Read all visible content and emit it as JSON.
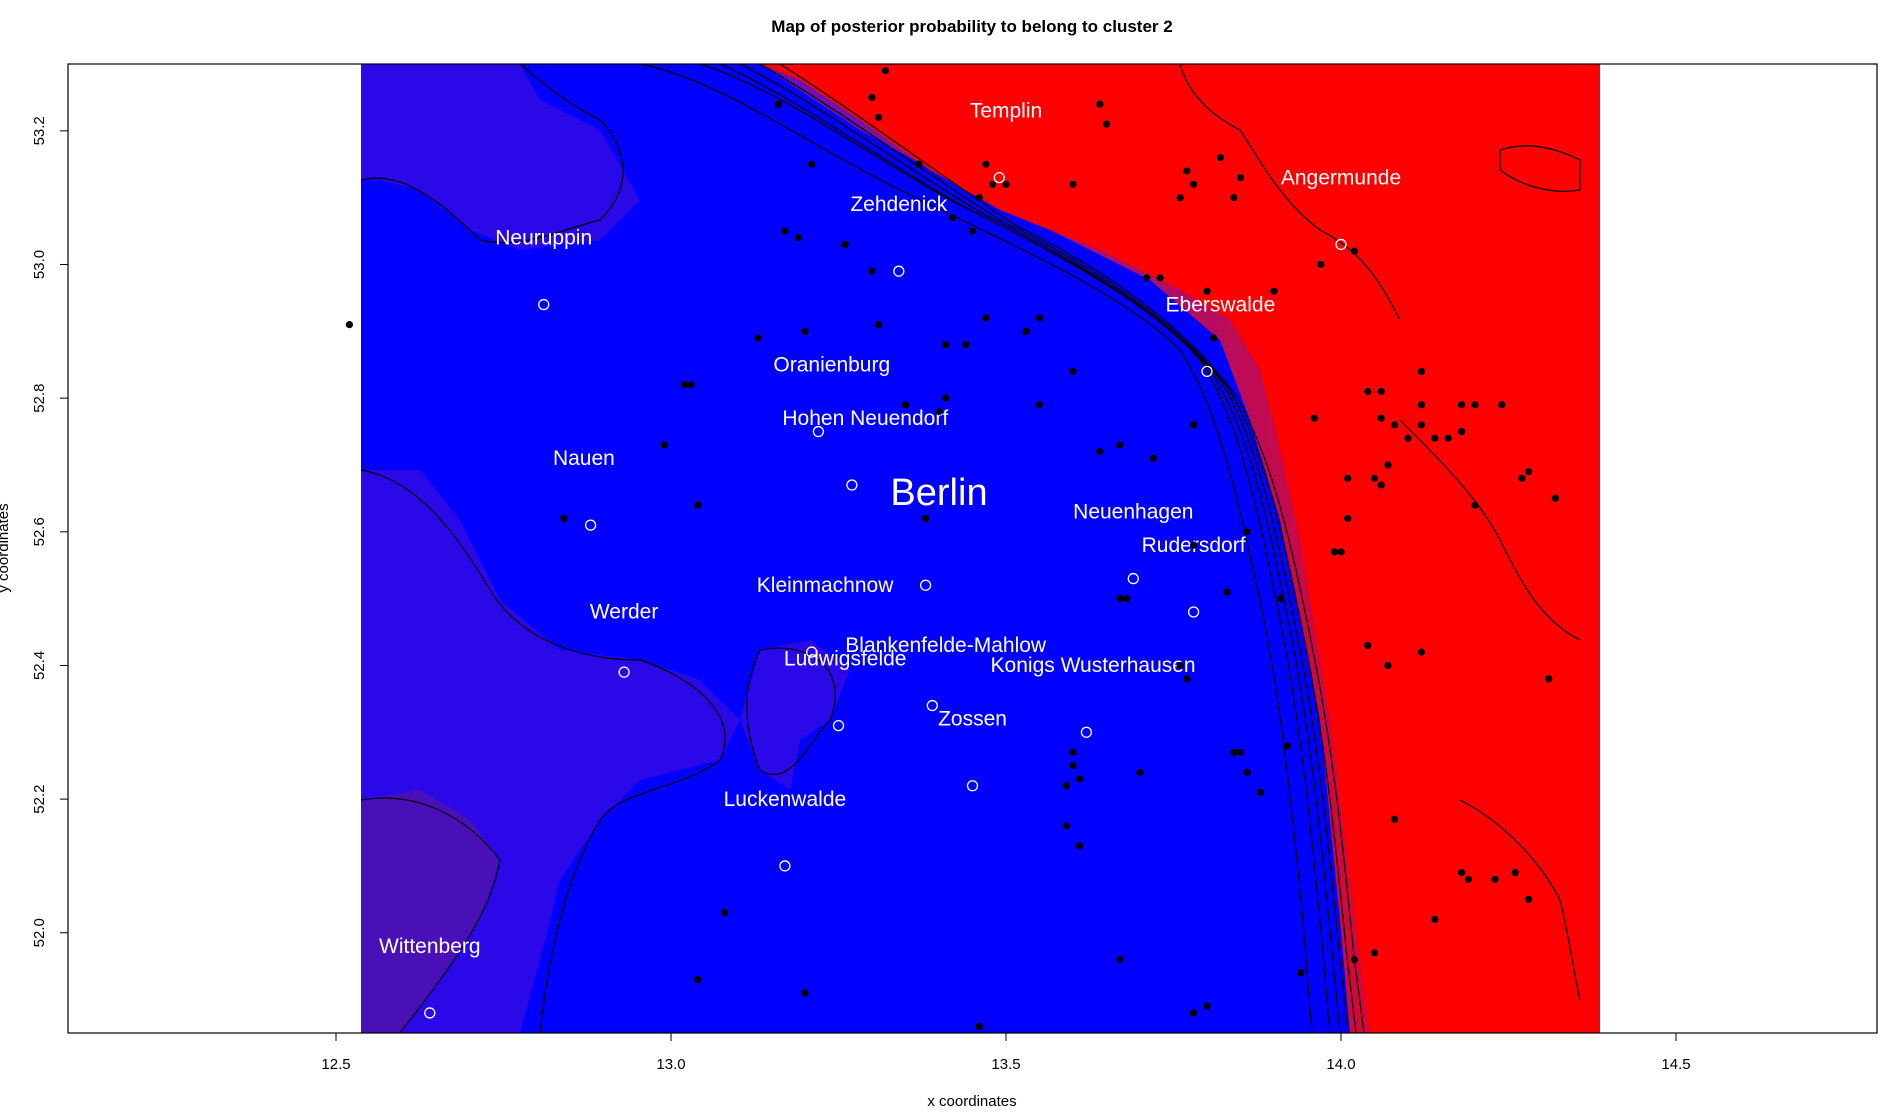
{
  "map": {
    "title": "Map of posterior probability to belong to cluster  2",
    "xlabel": "x coordinates",
    "ylabel": "y coordinates",
    "xlim": [
      12.1,
      14.8
    ],
    "ylim": [
      51.85,
      53.3
    ],
    "raster_x_range": [
      12.52,
      14.33
    ],
    "x_ticks": [
      "12.5",
      "13.0",
      "13.5",
      "14.0",
      "14.5"
    ],
    "y_ticks": [
      "52.0",
      "52.2",
      "52.4",
      "52.6",
      "52.8",
      "53.0",
      "53.2"
    ],
    "colors": {
      "low": "#0000ff",
      "high": "#ff0000",
      "contour": "#000000",
      "label": "#ffffff",
      "marker": "#000000"
    },
    "cities": [
      {
        "name": "Templin",
        "lon": 13.5,
        "lat": 53.22
      },
      {
        "name": "Angermunde",
        "lon": 14.0,
        "lat": 53.12
      },
      {
        "name": "Zehdenick",
        "lon": 13.34,
        "lat": 53.08
      },
      {
        "name": "Neuruppin",
        "lon": 12.81,
        "lat": 53.03
      },
      {
        "name": "Eberswalde",
        "lon": 13.82,
        "lat": 52.93
      },
      {
        "name": "Oranienburg",
        "lon": 13.24,
        "lat": 52.84
      },
      {
        "name": "Hohen Neuendorf",
        "lon": 13.29,
        "lat": 52.76
      },
      {
        "name": "Nauen",
        "lon": 12.87,
        "lat": 52.7
      },
      {
        "name": "Neuenhagen",
        "lon": 13.69,
        "lat": 52.62
      },
      {
        "name": "Rudersdorf",
        "lon": 13.78,
        "lat": 52.57
      },
      {
        "name": "Kleinmachnow",
        "lon": 13.23,
        "lat": 52.51
      },
      {
        "name": "Werder",
        "lon": 12.93,
        "lat": 52.47
      },
      {
        "name": "Blankenfelde-Mahlow",
        "lon": 13.41,
        "lat": 52.42
      },
      {
        "name": "Ludwigsfelde",
        "lon": 13.26,
        "lat": 52.4
      },
      {
        "name": "Konigs Wusterhausen",
        "lon": 13.63,
        "lat": 52.39
      },
      {
        "name": "Zossen",
        "lon": 13.45,
        "lat": 52.31
      },
      {
        "name": "Luckenwalde",
        "lon": 13.17,
        "lat": 52.19
      },
      {
        "name": "Wittenberg",
        "lon": 12.64,
        "lat": 51.97
      }
    ],
    "capital": {
      "name": "Berlin",
      "lon": 13.4,
      "lat": 52.64
    },
    "open_markers": [
      [
        13.49,
        53.13
      ],
      [
        13.34,
        52.99
      ],
      [
        12.81,
        52.94
      ],
      [
        14.0,
        53.03
      ],
      [
        13.8,
        52.84
      ],
      [
        13.22,
        52.75
      ],
      [
        13.27,
        52.67
      ],
      [
        12.88,
        52.61
      ],
      [
        13.38,
        52.52
      ],
      [
        13.69,
        52.53
      ],
      [
        13.78,
        52.48
      ],
      [
        13.21,
        52.42
      ],
      [
        12.93,
        52.39
      ],
      [
        13.39,
        52.34
      ],
      [
        13.25,
        52.31
      ],
      [
        13.62,
        52.3
      ],
      [
        13.45,
        52.22
      ],
      [
        13.17,
        52.1
      ],
      [
        12.64,
        51.88
      ]
    ],
    "filled_markers": [
      [
        13.32,
        53.29
      ],
      [
        13.16,
        53.24
      ],
      [
        13.3,
        53.25
      ],
      [
        13.31,
        53.22
      ],
      [
        13.64,
        53.24
      ],
      [
        13.65,
        53.21
      ],
      [
        13.21,
        53.15
      ],
      [
        13.37,
        53.15
      ],
      [
        13.47,
        53.15
      ],
      [
        13.48,
        53.12
      ],
      [
        13.5,
        53.12
      ],
      [
        13.46,
        53.1
      ],
      [
        13.42,
        53.07
      ],
      [
        13.45,
        53.05
      ],
      [
        13.6,
        53.12
      ],
      [
        13.77,
        53.14
      ],
      [
        13.76,
        53.1
      ],
      [
        13.78,
        53.12
      ],
      [
        13.82,
        53.16
      ],
      [
        13.84,
        53.1
      ],
      [
        13.85,
        53.13
      ],
      [
        13.17,
        53.05
      ],
      [
        13.19,
        53.04
      ],
      [
        13.26,
        53.03
      ],
      [
        13.3,
        52.99
      ],
      [
        13.71,
        52.98
      ],
      [
        13.73,
        52.98
      ],
      [
        13.8,
        52.96
      ],
      [
        13.9,
        52.96
      ],
      [
        14.02,
        53.02
      ],
      [
        13.97,
        53.0
      ],
      [
        12.52,
        52.91
      ],
      [
        13.13,
        52.89
      ],
      [
        13.2,
        52.9
      ],
      [
        13.31,
        52.91
      ],
      [
        13.41,
        52.88
      ],
      [
        13.47,
        52.92
      ],
      [
        13.53,
        52.9
      ],
      [
        13.55,
        52.92
      ],
      [
        13.44,
        52.88
      ],
      [
        13.6,
        52.84
      ],
      [
        13.81,
        52.89
      ],
      [
        13.02,
        52.82
      ],
      [
        13.03,
        52.82
      ],
      [
        13.35,
        52.79
      ],
      [
        13.4,
        52.78
      ],
      [
        13.41,
        52.8
      ],
      [
        13.55,
        52.79
      ],
      [
        12.99,
        52.73
      ],
      [
        13.64,
        52.72
      ],
      [
        13.67,
        52.73
      ],
      [
        13.72,
        52.71
      ],
      [
        13.78,
        52.76
      ],
      [
        13.96,
        52.77
      ],
      [
        14.04,
        52.81
      ],
      [
        14.06,
        52.81
      ],
      [
        14.06,
        52.77
      ],
      [
        14.08,
        52.76
      ],
      [
        14.1,
        52.74
      ],
      [
        14.12,
        52.76
      ],
      [
        14.14,
        52.74
      ],
      [
        14.16,
        52.74
      ],
      [
        14.18,
        52.75
      ],
      [
        14.18,
        52.79
      ],
      [
        14.2,
        52.79
      ],
      [
        14.24,
        52.79
      ],
      [
        14.12,
        52.84
      ],
      [
        14.12,
        52.79
      ],
      [
        14.07,
        52.7
      ],
      [
        14.05,
        52.68
      ],
      [
        14.06,
        52.67
      ],
      [
        14.01,
        52.68
      ],
      [
        13.04,
        52.64
      ],
      [
        12.84,
        52.62
      ],
      [
        13.38,
        52.62
      ],
      [
        13.78,
        52.58
      ],
      [
        13.86,
        52.6
      ],
      [
        13.99,
        52.57
      ],
      [
        14.0,
        52.57
      ],
      [
        14.01,
        52.62
      ],
      [
        14.2,
        52.64
      ],
      [
        14.27,
        52.68
      ],
      [
        14.28,
        52.69
      ],
      [
        14.32,
        52.65
      ],
      [
        13.67,
        52.5
      ],
      [
        13.68,
        52.5
      ],
      [
        13.83,
        52.51
      ],
      [
        13.91,
        52.5
      ],
      [
        14.04,
        52.43
      ],
      [
        14.07,
        52.4
      ],
      [
        14.12,
        52.42
      ],
      [
        13.76,
        52.4
      ],
      [
        13.77,
        52.38
      ],
      [
        14.31,
        52.38
      ],
      [
        13.6,
        52.27
      ],
      [
        13.6,
        52.27
      ],
      [
        13.6,
        52.25
      ],
      [
        13.61,
        52.23
      ],
      [
        13.59,
        52.22
      ],
      [
        13.7,
        52.24
      ],
      [
        13.84,
        52.27
      ],
      [
        13.85,
        52.27
      ],
      [
        13.86,
        52.24
      ],
      [
        13.88,
        52.21
      ],
      [
        13.92,
        52.28
      ],
      [
        13.59,
        52.16
      ],
      [
        13.61,
        52.13
      ],
      [
        14.08,
        52.17
      ],
      [
        13.08,
        52.03
      ],
      [
        14.18,
        52.09
      ],
      [
        14.19,
        52.08
      ],
      [
        14.23,
        52.08
      ],
      [
        14.26,
        52.09
      ],
      [
        14.28,
        52.05
      ],
      [
        14.14,
        52.02
      ],
      [
        14.02,
        51.96
      ],
      [
        14.05,
        51.97
      ],
      [
        13.94,
        51.94
      ],
      [
        13.67,
        51.96
      ],
      [
        13.04,
        51.93
      ],
      [
        13.2,
        51.91
      ],
      [
        13.78,
        51.88
      ],
      [
        13.8,
        51.89
      ],
      [
        13.46,
        51.86
      ]
    ]
  }
}
